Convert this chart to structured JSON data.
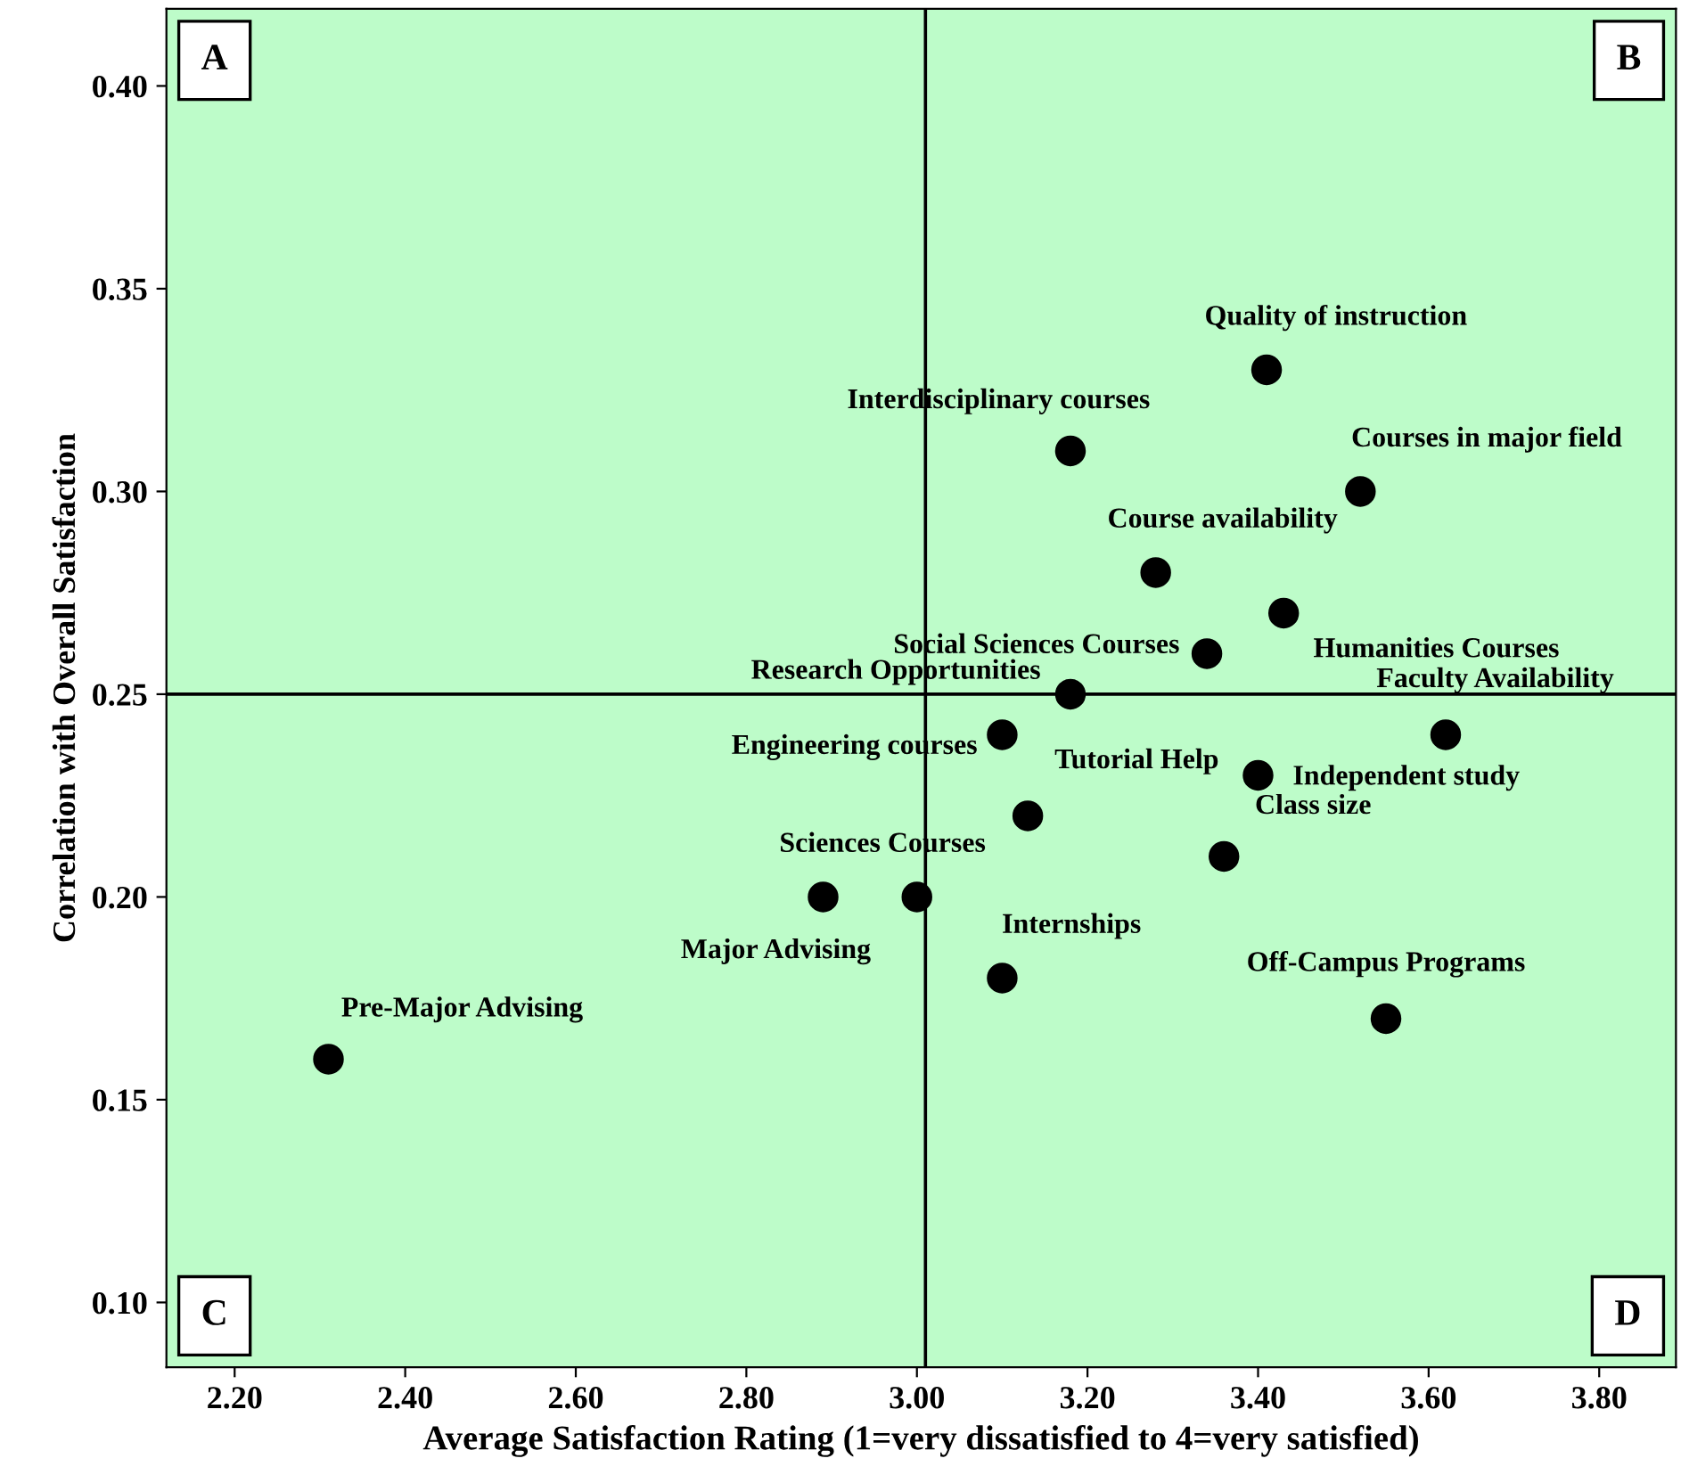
{
  "chart_data": {
    "type": "scatter",
    "xlabel": "Average Satisfaction Rating (1=very dissatisfied to 4=very satisfied)",
    "ylabel": "Correlation with Overall Satisfaction",
    "x": [
      3.41,
      3.18,
      3.52,
      3.28,
      3.43,
      3.34,
      3.18,
      3.1,
      3.62,
      3.4,
      3.13,
      3.36,
      2.89,
      3.0,
      3.1,
      3.55,
      2.31
    ],
    "series": [
      {
        "color": "#000000",
        "values": [
          0.33,
          0.31,
          0.3,
          0.28,
          0.27,
          0.26,
          0.25,
          0.24,
          0.24,
          0.23,
          0.22,
          0.21,
          0.2,
          0.2,
          0.18,
          0.17,
          0.16
        ]
      }
    ],
    "marker": "circle",
    "grid": false,
    "legend": false,
    "xlim": [
      2.12,
      3.89
    ],
    "ylim": [
      0.084,
      0.419
    ],
    "xticks": [
      {
        "value": 2.2,
        "label": "2.20"
      },
      {
        "value": 2.4,
        "label": "2.40"
      },
      {
        "value": 2.6,
        "label": "2.60"
      },
      {
        "value": 2.8,
        "label": "2.80"
      },
      {
        "value": 3.0,
        "label": "3.00"
      },
      {
        "value": 3.2,
        "label": "3.20"
      },
      {
        "value": 3.4,
        "label": "3.40"
      },
      {
        "value": 3.6,
        "label": "3.60"
      },
      {
        "value": 3.8,
        "label": "3.80"
      }
    ],
    "yticks": [
      {
        "value": 0.1,
        "label": "0.10"
      },
      {
        "value": 0.15,
        "label": "0.15"
      },
      {
        "value": 0.2,
        "label": "0.20"
      },
      {
        "value": 0.25,
        "label": "0.25"
      },
      {
        "value": 0.3,
        "label": "0.30"
      },
      {
        "value": 0.35,
        "label": "0.35"
      },
      {
        "value": 0.4,
        "label": "0.40"
      }
    ],
    "ref_lines": [
      {
        "axis": "x",
        "value": 3.01,
        "color": "#000000"
      },
      {
        "axis": "y",
        "value": 0.25,
        "color": "#000000"
      }
    ],
    "annotations": [
      {
        "text": "Quality of instruction",
        "x": 3.41,
        "y": 0.33
      },
      {
        "text": "Interdisciplinary courses",
        "x": 3.18,
        "y": 0.31
      },
      {
        "text": "Courses in major field",
        "x": 3.52,
        "y": 0.3
      },
      {
        "text": "Course availability",
        "x": 3.28,
        "y": 0.28
      },
      {
        "text": "Humanities Courses",
        "x": 3.43,
        "y": 0.27
      },
      {
        "text": "Social Sciences Courses",
        "x": 3.34,
        "y": 0.26
      },
      {
        "text": "Research Opportunities",
        "x": 3.18,
        "y": 0.25
      },
      {
        "text": "Engineering courses",
        "x": 3.1,
        "y": 0.24
      },
      {
        "text": "Faculty Availability",
        "x": 3.62,
        "y": 0.24
      },
      {
        "text": "Independent study",
        "x": 3.4,
        "y": 0.23
      },
      {
        "text": "Tutorial Help",
        "x": 3.13,
        "y": 0.22
      },
      {
        "text": "Class size",
        "x": 3.36,
        "y": 0.21
      },
      {
        "text": "Sciences Courses",
        "x": 2.89,
        "y": 0.2
      },
      {
        "text": "Major Advising",
        "x": 3.0,
        "y": 0.2
      },
      {
        "text": "Internships",
        "x": 3.1,
        "y": 0.18
      },
      {
        "text": "Off-Campus Programs",
        "x": 3.55,
        "y": 0.17
      },
      {
        "text": "Pre-Major Advising",
        "x": 2.31,
        "y": 0.16
      },
      "A",
      "B",
      "C",
      "D"
    ]
  }
}
